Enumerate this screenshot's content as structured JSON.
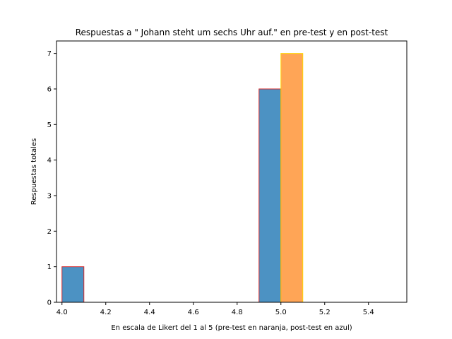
{
  "chart_data": {
    "type": "bar",
    "title": "Respuestas a \" Johann steht um sechs Uhr auf.\" en pre-test y en post-test",
    "xlabel": "En escala de Likert del 1 al 5 (pre-test en naranja, post-test en azul)",
    "ylabel": "Respuestas totales",
    "xlim": [
      3.975,
      5.575
    ],
    "ylim": [
      0,
      7.35
    ],
    "x_ticks": [
      4.0,
      4.2,
      4.4,
      4.6,
      4.8,
      5.0,
      5.2,
      5.4
    ],
    "x_tick_labels": [
      "4.0",
      "4.2",
      "4.4",
      "4.6",
      "4.8",
      "5.0",
      "5.2",
      "5.4"
    ],
    "y_ticks": [
      0,
      1,
      2,
      3,
      4,
      5,
      6,
      7
    ],
    "y_tick_labels": [
      "0",
      "1",
      "2",
      "3",
      "4",
      "5",
      "6",
      "7"
    ],
    "grid": false,
    "series": [
      {
        "name": "post-test",
        "color": "#1f77b4",
        "edge_color": "#d62728",
        "alpha": 0.8,
        "bars": [
          {
            "x0": 4.0,
            "x1": 4.1,
            "value": 1
          },
          {
            "x0": 4.1,
            "x1": 4.9,
            "value": 0
          },
          {
            "x0": 4.9,
            "x1": 5.0,
            "value": 6
          }
        ]
      },
      {
        "name": "pre-test",
        "color": "#ff7f0e",
        "edge_color": "#ffd700",
        "alpha": 0.7,
        "bars": [
          {
            "x0": 5.0,
            "x1": 5.1,
            "value": 7
          }
        ]
      }
    ]
  }
}
